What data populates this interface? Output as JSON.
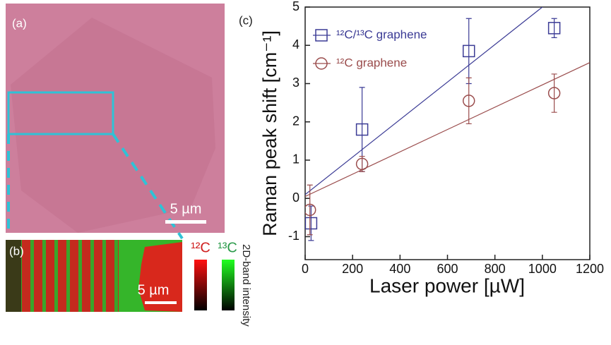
{
  "figure": {
    "panel_a": "(a)",
    "panel_b": "(b)",
    "scale_a": "5 µm",
    "scale_b": "5 µm",
    "bar_12c": "¹²C",
    "bar_13c": "¹³C",
    "intensity_label": "2D-band intensity"
  },
  "chart_data": {
    "type": "scatter",
    "panel_label": "(c)",
    "x_label": "Laser power [µW]",
    "y_label": "Raman peak shift [cm⁻¹]",
    "xlim": [
      0,
      1200
    ],
    "xticks": [
      0,
      200,
      400,
      600,
      800,
      1000,
      1200
    ],
    "ylim": [
      -1.6,
      5
    ],
    "yticks": [
      -1,
      0,
      1,
      2,
      3,
      4,
      5
    ],
    "series": [
      {
        "name": "¹²C/¹³C graphene",
        "color": "#3b3b95",
        "marker": "square",
        "x": [
          25,
          240,
          690,
          1050
        ],
        "values": [
          -0.65,
          1.8,
          3.85,
          4.45
        ],
        "errors": [
          0.45,
          1.1,
          0.85,
          0.25
        ],
        "fit": {
          "x": [
            0,
            1200
          ],
          "values": [
            0.1,
            5.98
          ]
        }
      },
      {
        "name": "¹²C graphene",
        "color": "#9a4c4c",
        "marker": "circle",
        "x": [
          20,
          240,
          690,
          1050
        ],
        "values": [
          -0.3,
          0.9,
          2.55,
          2.75
        ],
        "errors": [
          0.65,
          0.2,
          0.6,
          0.5
        ],
        "fit": {
          "x": [
            0,
            1200
          ],
          "values": [
            0.05,
            3.55
          ]
        }
      }
    ]
  }
}
